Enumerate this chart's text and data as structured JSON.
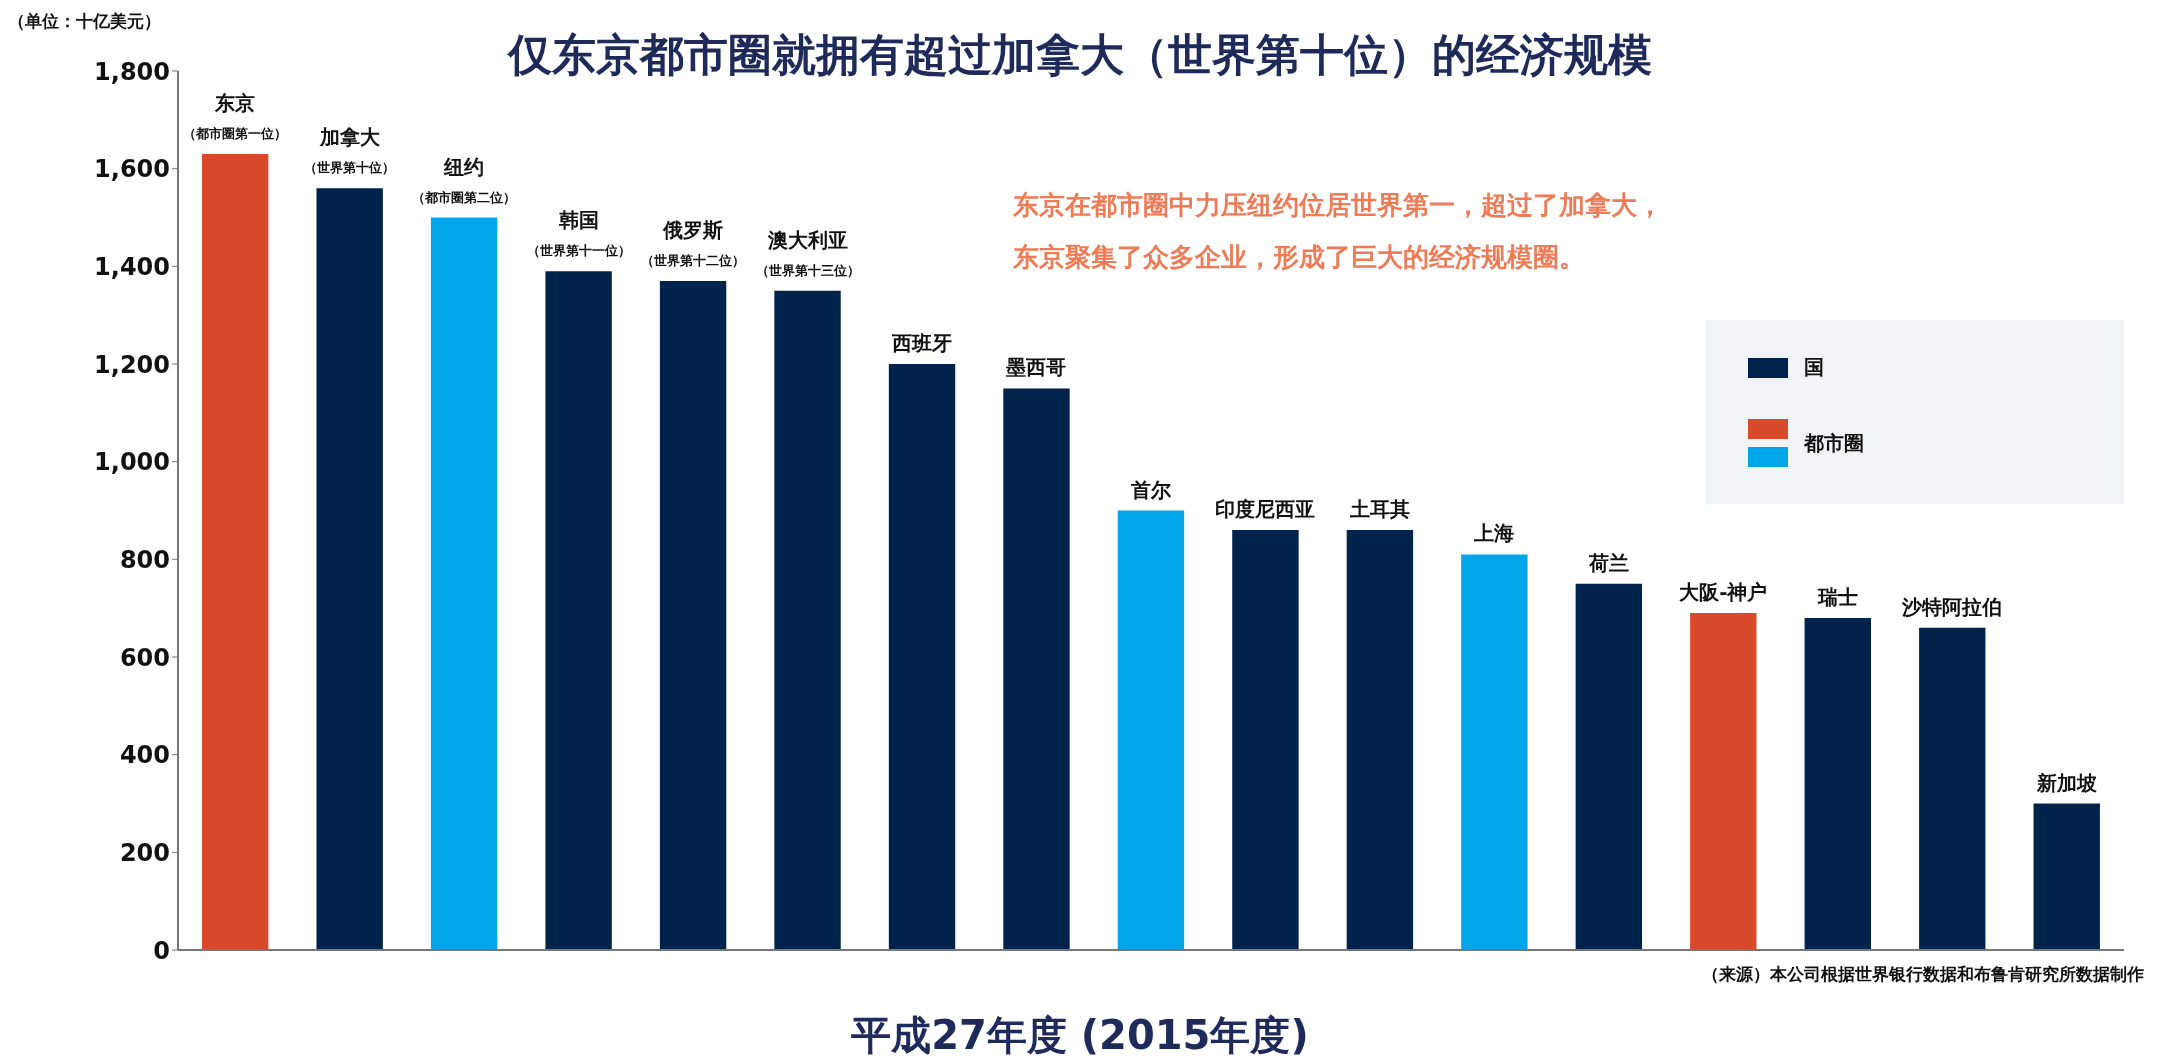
{
  "chart_data": {
    "type": "bar",
    "title": "仅东京都市圈就拥有超过加拿大（世界第十位）的经济规模",
    "ylabel": "（单位：十亿美元）",
    "categories": [
      "东京",
      "加拿大",
      "纽约",
      "韩国",
      "俄罗斯",
      "澳大利亚",
      "西班牙",
      "墨西哥",
      "首尔",
      "印度尼西亚",
      "土耳其",
      "上海",
      "荷兰",
      "大阪-神户",
      "瑞士",
      "沙特阿拉伯",
      "新加坡"
    ],
    "series": [
      {
        "name": "国",
        "color": "#00234b",
        "values": [
          null,
          1560,
          null,
          1390,
          1370,
          1350,
          1200,
          1150,
          null,
          860,
          860,
          null,
          750,
          null,
          680,
          660,
          300
        ]
      },
      {
        "name": "都市圈",
        "colors": [
          "#d94a2b",
          null,
          "#00a6e9",
          null,
          null,
          null,
          null,
          null,
          "#00a6e9",
          null,
          null,
          "#00a6e9",
          null,
          "#d94a2b",
          null,
          null,
          null
        ],
        "values": [
          1630,
          null,
          1500,
          null,
          null,
          null,
          null,
          null,
          900,
          null,
          null,
          810,
          null,
          690,
          null,
          null,
          null
        ]
      }
    ],
    "ylim": [
      0,
      1800
    ],
    "yticks": [
      {
        "value": 0,
        "label": "0"
      },
      {
        "value": 200,
        "label": "200"
      },
      {
        "value": 400,
        "label": "400"
      },
      {
        "value": 600,
        "label": "600"
      },
      {
        "value": 800,
        "label": "800"
      },
      {
        "value": 1000,
        "label": "1,000"
      },
      {
        "value": 1200,
        "label": "1,200"
      },
      {
        "value": 1400,
        "label": "1,400"
      },
      {
        "value": 1600,
        "label": "1,600"
      },
      {
        "value": 1800,
        "label": "1,800"
      }
    ],
    "legend": "top right",
    "annotations": [
      {
        "text": "（都市圈第一位）",
        "x": "东京",
        "y": 1630
      },
      {
        "text": "（世界第十位）",
        "x": "加拿大",
        "y": 1560
      },
      {
        "text": "（都市圈第二位）",
        "x": "纽约",
        "y": 1500
      },
      {
        "text": "（世界第十一位）",
        "x": "韩国",
        "y": 1390
      },
      {
        "text": "（世界第十二位）",
        "x": "俄罗斯",
        "y": 1370
      },
      {
        "text": "（世界第十三位）",
        "x": "澳大利亚",
        "y": 1350
      },
      "东京在都市圈中力压纽约位居世界第一，超过了加拿大，",
      "东京聚集了众多企业，形成了巨大的经济规模圈。",
      "（来源）本公司根据世界银行数据和布鲁肯研究所数据制作",
      "平成27年度 (2015年度)"
    ]
  }
}
